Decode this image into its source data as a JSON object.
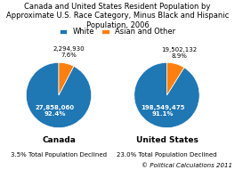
{
  "title": "Canada and United States Resident Population by Approximate U.S. Race Category, Minus Black and Hispanic Population, 2006",
  "legend": "upper center",
  "annotations": [
    "© Political Calculations 2011"
  ],
  "chart_data": [
    {
      "type": "pie",
      "title": "Canada",
      "subtitle": "3.5% Total Population Declined",
      "categories": [
        "White",
        "Asian and Other"
      ],
      "values": [
        92.4,
        7.6
      ],
      "value_labels": [
        "27,858,060\n92.4%",
        "2,294,930\n7.6%"
      ],
      "data_labels": true
    },
    {
      "type": "pie",
      "title": "United States",
      "subtitle": "23.0% Total Population Declined",
      "categories": [
        "White",
        "Asian and Other"
      ],
      "values": [
        91.1,
        8.9
      ],
      "value_labels": [
        "198,549,475\n91.1%",
        "19,502,132\n8.9%"
      ],
      "data_labels": true
    }
  ]
}
